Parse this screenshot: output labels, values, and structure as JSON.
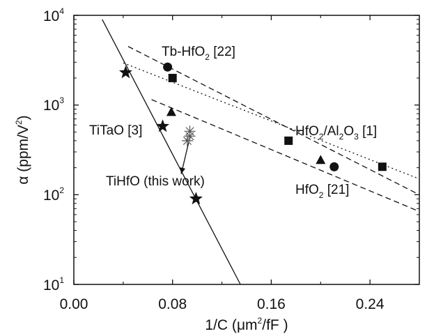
{
  "chart_data": {
    "type": "scatter",
    "xlabel": {
      "pre": "1/C (",
      "mu": "μ",
      "mid": "m",
      "sup": "2",
      "post": "/fF )"
    },
    "ylabel": {
      "pre": "α (ppm/V",
      "sup": "2",
      "post": ")"
    },
    "xlim": [
      0.0,
      0.28
    ],
    "ylim": [
      10,
      10000
    ],
    "yscale": "log",
    "x_ticks": [
      {
        "value": 0.0,
        "label": "0.00"
      },
      {
        "value": 0.08,
        "label": "0.08"
      },
      {
        "value": 0.16,
        "label": "0.16"
      },
      {
        "value": 0.24,
        "label": "0.24"
      }
    ],
    "y_ticks": [
      {
        "value": 10,
        "base": "10",
        "exp": "1"
      },
      {
        "value": 100,
        "base": "10",
        "exp": "2"
      },
      {
        "value": 1000,
        "base": "10",
        "exp": "3"
      },
      {
        "value": 10000,
        "base": "10",
        "exp": "4"
      }
    ],
    "grid": false,
    "series": [
      {
        "marker": "circle",
        "points": [
          [
            0.076,
            2650
          ],
          [
            0.211,
            205
          ]
        ]
      },
      {
        "marker": "square",
        "points": [
          [
            0.08,
            2000
          ],
          [
            0.174,
            400
          ],
          [
            0.25,
            205
          ]
        ]
      },
      {
        "marker": "triangle",
        "points": [
          [
            0.079,
            840
          ],
          [
            0.2,
            245
          ]
        ]
      },
      {
        "marker": "star",
        "points": [
          [
            0.042,
            2300
          ],
          [
            0.072,
            580
          ],
          [
            0.099,
            90
          ]
        ]
      },
      {
        "marker": "asterisk",
        "points": [
          [
            0.094,
            510
          ],
          [
            0.092,
            400
          ],
          [
            0.094,
            450
          ]
        ]
      }
    ],
    "fit_lines": [
      {
        "style": "solid",
        "from": [
          0.023,
          9000
        ],
        "to": [
          0.135,
          10
        ]
      },
      {
        "style": "dashed",
        "from": [
          0.044,
          4500
        ],
        "to": [
          0.28,
          100
        ]
      },
      {
        "style": "dashed",
        "from": [
          0.063,
          1150
        ],
        "to": [
          0.28,
          65
        ]
      },
      {
        "style": "dotted",
        "from": [
          0.04,
          2950
        ],
        "to": [
          0.28,
          150
        ]
      }
    ],
    "annotations": [
      {
        "key": "tbhfo2",
        "pre": "Tb-HfO",
        "sub": "2",
        "post": " [22]"
      },
      {
        "key": "hfo2al2o3",
        "pre": "HfO",
        "sub1": "2",
        "mid": "/Al",
        "sub2": "2",
        "mid2": "O",
        "sub3": "3",
        "post": " [1]"
      },
      {
        "key": "titao",
        "text": "TiTaO [3]"
      },
      {
        "key": "tihfo",
        "text": "TiHfO (this work)"
      },
      {
        "key": "hfo2",
        "pre": "HfO",
        "sub": "2",
        "post": " [21]"
      }
    ],
    "arrow": {
      "from": [
        0.093,
        380
      ],
      "to": [
        0.087,
        170
      ]
    }
  }
}
